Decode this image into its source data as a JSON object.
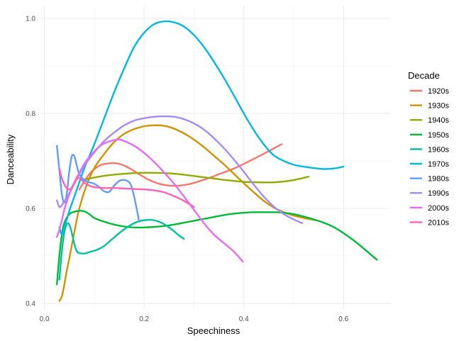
{
  "chart_data": {
    "type": "line",
    "xlabel": "Speechiness",
    "ylabel": "Danceability",
    "xlim": [
      -0.008,
      0.695
    ],
    "ylim": [
      0.388,
      1.027
    ],
    "x_ticks": [
      0.0,
      0.2,
      0.4,
      0.6
    ],
    "y_ticks": [
      0.4,
      0.6,
      0.8,
      1.0
    ],
    "x_tick_labels": [
      "0.0",
      "0.2",
      "0.4",
      "0.6"
    ],
    "y_tick_labels": [
      "0.4",
      "0.6",
      "0.8",
      "1.0"
    ],
    "grid": true,
    "legend": {
      "title": "Decade",
      "placement": "right"
    },
    "series": [
      {
        "name": "1920s",
        "color": "#F8766D",
        "points": [
          [
            0.07,
            0.64
          ],
          [
            0.09,
            0.672
          ],
          [
            0.11,
            0.69
          ],
          [
            0.13,
            0.695
          ],
          [
            0.15,
            0.694
          ],
          [
            0.17,
            0.685
          ],
          [
            0.19,
            0.672
          ],
          [
            0.21,
            0.66
          ],
          [
            0.23,
            0.652
          ],
          [
            0.25,
            0.648
          ],
          [
            0.27,
            0.648
          ],
          [
            0.29,
            0.651
          ],
          [
            0.31,
            0.657
          ],
          [
            0.33,
            0.664
          ],
          [
            0.35,
            0.672
          ],
          [
            0.38,
            0.684
          ],
          [
            0.41,
            0.699
          ],
          [
            0.44,
            0.715
          ],
          [
            0.47,
            0.732
          ],
          [
            0.476,
            0.735
          ]
        ]
      },
      {
        "name": "1930s",
        "color": "#D39200",
        "points": [
          [
            0.03,
            0.405
          ],
          [
            0.035,
            0.415
          ],
          [
            0.04,
            0.44
          ],
          [
            0.045,
            0.47
          ],
          [
            0.05,
            0.495
          ],
          [
            0.06,
            0.55
          ],
          [
            0.07,
            0.6
          ],
          [
            0.085,
            0.65
          ],
          [
            0.1,
            0.685
          ],
          [
            0.12,
            0.715
          ],
          [
            0.14,
            0.74
          ],
          [
            0.16,
            0.757
          ],
          [
            0.18,
            0.767
          ],
          [
            0.2,
            0.773
          ],
          [
            0.22,
            0.775
          ],
          [
            0.24,
            0.774
          ],
          [
            0.26,
            0.768
          ],
          [
            0.28,
            0.758
          ],
          [
            0.3,
            0.745
          ],
          [
            0.32,
            0.729
          ],
          [
            0.34,
            0.711
          ],
          [
            0.36,
            0.693
          ],
          [
            0.38,
            0.673
          ],
          [
            0.4,
            0.653
          ],
          [
            0.42,
            0.634
          ],
          [
            0.44,
            0.616
          ],
          [
            0.46,
            0.602
          ],
          [
            0.48,
            0.592
          ],
          [
            0.5,
            0.585
          ],
          [
            0.52,
            0.58
          ],
          [
            0.545,
            0.575
          ]
        ]
      },
      {
        "name": "1940s",
        "color": "#93AA00",
        "points": [
          [
            0.078,
            0.66
          ],
          [
            0.1,
            0.665
          ],
          [
            0.13,
            0.67
          ],
          [
            0.16,
            0.673
          ],
          [
            0.19,
            0.675
          ],
          [
            0.22,
            0.675
          ],
          [
            0.25,
            0.674
          ],
          [
            0.28,
            0.671
          ],
          [
            0.31,
            0.667
          ],
          [
            0.34,
            0.663
          ],
          [
            0.37,
            0.659
          ],
          [
            0.4,
            0.656
          ],
          [
            0.43,
            0.655
          ],
          [
            0.46,
            0.655
          ],
          [
            0.49,
            0.658
          ],
          [
            0.51,
            0.662
          ],
          [
            0.53,
            0.667
          ]
        ]
      },
      {
        "name": "1950s",
        "color": "#00BA38",
        "points": [
          [
            0.025,
            0.44
          ],
          [
            0.03,
            0.5
          ],
          [
            0.035,
            0.545
          ],
          [
            0.04,
            0.57
          ],
          [
            0.05,
            0.588
          ],
          [
            0.06,
            0.593
          ],
          [
            0.07,
            0.595
          ],
          [
            0.08,
            0.594
          ],
          [
            0.09,
            0.588
          ],
          [
            0.1,
            0.58
          ],
          [
            0.12,
            0.572
          ],
          [
            0.14,
            0.566
          ],
          [
            0.16,
            0.562
          ],
          [
            0.18,
            0.56
          ],
          [
            0.2,
            0.56
          ],
          [
            0.22,
            0.561
          ],
          [
            0.24,
            0.563
          ],
          [
            0.26,
            0.566
          ],
          [
            0.28,
            0.57
          ],
          [
            0.3,
            0.574
          ],
          [
            0.32,
            0.578
          ],
          [
            0.34,
            0.582
          ],
          [
            0.36,
            0.586
          ],
          [
            0.38,
            0.589
          ],
          [
            0.4,
            0.591
          ],
          [
            0.42,
            0.592
          ],
          [
            0.44,
            0.592
          ],
          [
            0.46,
            0.592
          ],
          [
            0.48,
            0.591
          ],
          [
            0.5,
            0.588
          ],
          [
            0.52,
            0.583
          ],
          [
            0.54,
            0.577
          ],
          [
            0.56,
            0.57
          ],
          [
            0.58,
            0.561
          ],
          [
            0.6,
            0.548
          ],
          [
            0.62,
            0.533
          ],
          [
            0.64,
            0.516
          ],
          [
            0.66,
            0.498
          ],
          [
            0.667,
            0.492
          ]
        ]
      },
      {
        "name": "1960s",
        "color": "#00C19F",
        "points": [
          [
            0.03,
            0.45
          ],
          [
            0.035,
            0.51
          ],
          [
            0.04,
            0.55
          ],
          [
            0.045,
            0.567
          ],
          [
            0.05,
            0.566
          ],
          [
            0.055,
            0.548
          ],
          [
            0.06,
            0.525
          ],
          [
            0.065,
            0.51
          ],
          [
            0.07,
            0.506
          ],
          [
            0.08,
            0.505
          ],
          [
            0.09,
            0.508
          ],
          [
            0.1,
            0.511
          ],
          [
            0.11,
            0.515
          ],
          [
            0.12,
            0.521
          ],
          [
            0.13,
            0.53
          ],
          [
            0.14,
            0.539
          ],
          [
            0.15,
            0.548
          ],
          [
            0.16,
            0.556
          ],
          [
            0.17,
            0.563
          ],
          [
            0.18,
            0.569
          ],
          [
            0.19,
            0.573
          ],
          [
            0.2,
            0.575
          ],
          [
            0.21,
            0.576
          ],
          [
            0.22,
            0.575
          ],
          [
            0.23,
            0.572
          ],
          [
            0.24,
            0.567
          ],
          [
            0.25,
            0.56
          ],
          [
            0.26,
            0.552
          ],
          [
            0.27,
            0.543
          ],
          [
            0.28,
            0.536
          ]
        ]
      },
      {
        "name": "1970s",
        "color": "#00B9E3",
        "points": [
          [
            0.03,
            0.56
          ],
          [
            0.035,
            0.545
          ],
          [
            0.04,
            0.56
          ],
          [
            0.05,
            0.595
          ],
          [
            0.06,
            0.625
          ],
          [
            0.07,
            0.655
          ],
          [
            0.08,
            0.685
          ],
          [
            0.09,
            0.71
          ],
          [
            0.1,
            0.735
          ],
          [
            0.12,
            0.79
          ],
          [
            0.14,
            0.845
          ],
          [
            0.16,
            0.895
          ],
          [
            0.18,
            0.94
          ],
          [
            0.2,
            0.97
          ],
          [
            0.22,
            0.988
          ],
          [
            0.24,
            0.994
          ],
          [
            0.26,
            0.992
          ],
          [
            0.28,
            0.983
          ],
          [
            0.3,
            0.965
          ],
          [
            0.32,
            0.94
          ],
          [
            0.34,
            0.909
          ],
          [
            0.36,
            0.875
          ],
          [
            0.38,
            0.838
          ],
          [
            0.4,
            0.8
          ],
          [
            0.42,
            0.765
          ],
          [
            0.44,
            0.735
          ],
          [
            0.46,
            0.712
          ],
          [
            0.48,
            0.7
          ],
          [
            0.5,
            0.692
          ],
          [
            0.52,
            0.688
          ],
          [
            0.54,
            0.685
          ],
          [
            0.56,
            0.683
          ],
          [
            0.58,
            0.684
          ],
          [
            0.6,
            0.688
          ]
        ]
      },
      {
        "name": "1980s",
        "color": "#619CFF",
        "points": [
          [
            0.025,
            0.732
          ],
          [
            0.03,
            0.68
          ],
          [
            0.035,
            0.63
          ],
          [
            0.04,
            0.612
          ],
          [
            0.045,
            0.632
          ],
          [
            0.05,
            0.68
          ],
          [
            0.055,
            0.71
          ],
          [
            0.06,
            0.71
          ],
          [
            0.065,
            0.69
          ],
          [
            0.07,
            0.672
          ],
          [
            0.08,
            0.66
          ],
          [
            0.09,
            0.655
          ],
          [
            0.1,
            0.652
          ],
          [
            0.11,
            0.645
          ],
          [
            0.12,
            0.636
          ],
          [
            0.13,
            0.635
          ],
          [
            0.14,
            0.648
          ],
          [
            0.15,
            0.658
          ],
          [
            0.16,
            0.66
          ],
          [
            0.17,
            0.655
          ],
          [
            0.175,
            0.645
          ],
          [
            0.18,
            0.625
          ],
          [
            0.185,
            0.6
          ],
          [
            0.19,
            0.572
          ]
        ]
      },
      {
        "name": "1990s",
        "color": "#A58AFF",
        "points": [
          [
            0.025,
            0.617
          ],
          [
            0.03,
            0.603
          ],
          [
            0.035,
            0.607
          ],
          [
            0.04,
            0.615
          ],
          [
            0.05,
            0.632
          ],
          [
            0.06,
            0.652
          ],
          [
            0.07,
            0.672
          ],
          [
            0.08,
            0.69
          ],
          [
            0.1,
            0.718
          ],
          [
            0.12,
            0.742
          ],
          [
            0.14,
            0.76
          ],
          [
            0.16,
            0.775
          ],
          [
            0.18,
            0.785
          ],
          [
            0.2,
            0.79
          ],
          [
            0.22,
            0.793
          ],
          [
            0.24,
            0.794
          ],
          [
            0.26,
            0.793
          ],
          [
            0.28,
            0.788
          ],
          [
            0.3,
            0.779
          ],
          [
            0.32,
            0.766
          ],
          [
            0.34,
            0.748
          ],
          [
            0.36,
            0.727
          ],
          [
            0.38,
            0.703
          ],
          [
            0.4,
            0.677
          ],
          [
            0.42,
            0.65
          ],
          [
            0.44,
            0.625
          ],
          [
            0.46,
            0.604
          ],
          [
            0.48,
            0.588
          ],
          [
            0.5,
            0.577
          ],
          [
            0.517,
            0.569
          ]
        ]
      },
      {
        "name": "2000s",
        "color": "#E76BF3",
        "points": [
          [
            0.025,
            0.54
          ],
          [
            0.03,
            0.555
          ],
          [
            0.035,
            0.575
          ],
          [
            0.04,
            0.598
          ],
          [
            0.05,
            0.63
          ],
          [
            0.06,
            0.655
          ],
          [
            0.07,
            0.675
          ],
          [
            0.08,
            0.694
          ],
          [
            0.09,
            0.708
          ],
          [
            0.1,
            0.72
          ],
          [
            0.11,
            0.73
          ],
          [
            0.12,
            0.737
          ],
          [
            0.13,
            0.741
          ],
          [
            0.14,
            0.744
          ],
          [
            0.15,
            0.745
          ],
          [
            0.16,
            0.742
          ],
          [
            0.18,
            0.732
          ],
          [
            0.2,
            0.717
          ],
          [
            0.22,
            0.698
          ],
          [
            0.24,
            0.676
          ],
          [
            0.26,
            0.652
          ],
          [
            0.28,
            0.625
          ],
          [
            0.3,
            0.597
          ],
          [
            0.32,
            0.569
          ],
          [
            0.34,
            0.545
          ],
          [
            0.36,
            0.527
          ],
          [
            0.38,
            0.509
          ],
          [
            0.398,
            0.488
          ]
        ]
      },
      {
        "name": "2010s",
        "color": "#FF62BC",
        "points": [
          [
            0.03,
            0.684
          ],
          [
            0.033,
            0.67
          ],
          [
            0.038,
            0.655
          ],
          [
            0.045,
            0.642
          ],
          [
            0.05,
            0.64
          ],
          [
            0.055,
            0.644
          ],
          [
            0.06,
            0.654
          ],
          [
            0.065,
            0.662
          ],
          [
            0.07,
            0.664
          ],
          [
            0.075,
            0.66
          ],
          [
            0.08,
            0.654
          ],
          [
            0.09,
            0.648
          ],
          [
            0.1,
            0.645
          ],
          [
            0.12,
            0.643
          ],
          [
            0.14,
            0.643
          ],
          [
            0.16,
            0.642
          ],
          [
            0.18,
            0.641
          ],
          [
            0.2,
            0.64
          ],
          [
            0.22,
            0.638
          ],
          [
            0.24,
            0.634
          ],
          [
            0.26,
            0.626
          ],
          [
            0.28,
            0.616
          ],
          [
            0.3,
            0.603
          ]
        ]
      }
    ]
  }
}
